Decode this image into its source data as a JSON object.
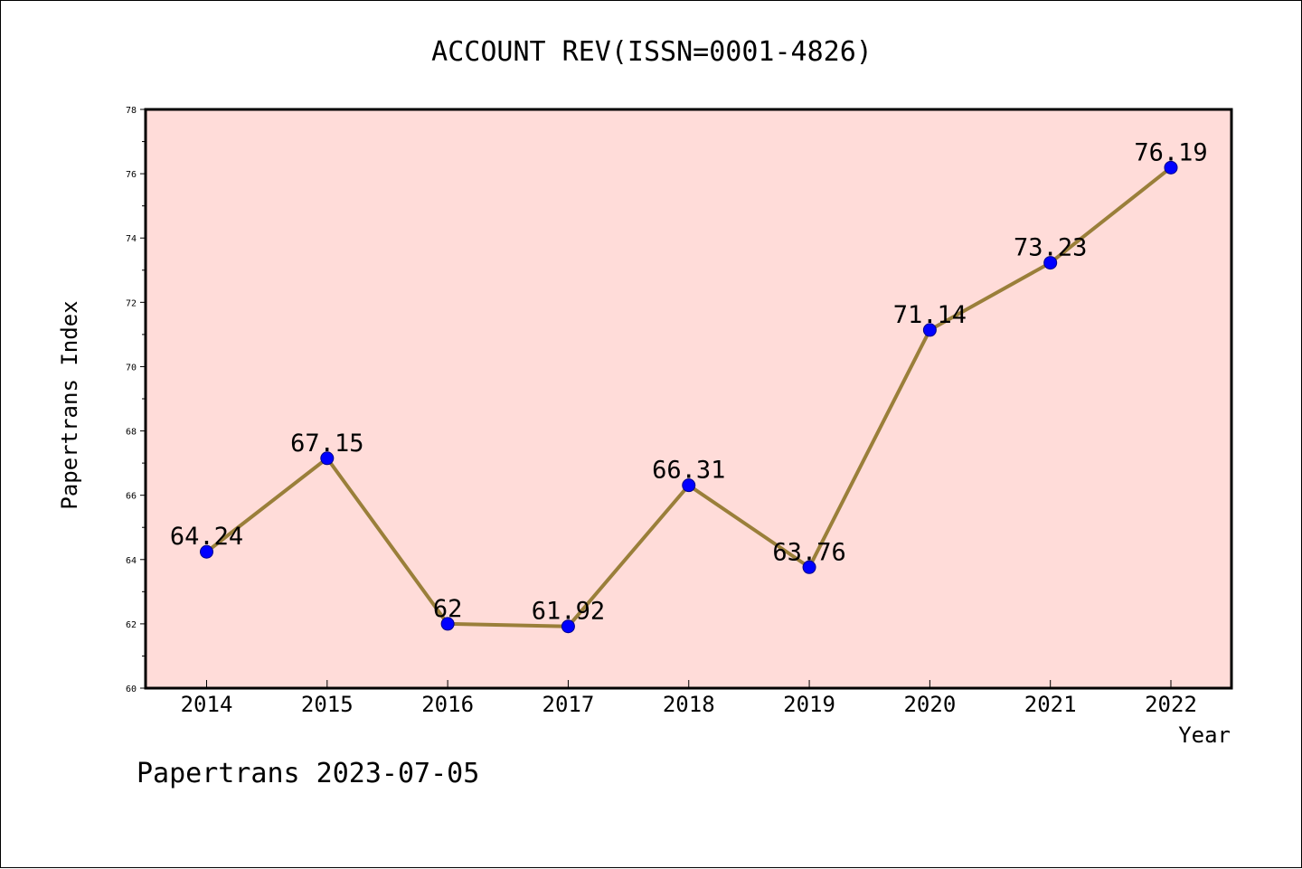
{
  "chart_data": {
    "type": "line",
    "title": "ACCOUNT REV(ISSN=0001-4826)",
    "xlabel": "Year",
    "ylabel": "Papertrans Index",
    "categories": [
      "2014",
      "2015",
      "2016",
      "2017",
      "2018",
      "2019",
      "2020",
      "2021",
      "2022"
    ],
    "series": [
      {
        "values": [
          64.24,
          67.15,
          62,
          61.92,
          66.31,
          63.76,
          71.14,
          73.23,
          76.19
        ],
        "labels": [
          "64.24",
          "67.15",
          "62",
          "61.92",
          "66.31",
          "63.76",
          "71.14",
          "73.23",
          "76.19"
        ]
      }
    ],
    "ylim": [
      60,
      78
    ],
    "yticks": [
      "60",
      "62",
      "64",
      "66",
      "68",
      "70",
      "72",
      "74",
      "76",
      "78"
    ],
    "grid": false,
    "legend": "none",
    "colors": {
      "plot_background": "#ffdcd9",
      "line": "#9a7f3a",
      "marker": "#0000ff",
      "marker_edge": "#00008b"
    }
  },
  "footer": {
    "text": "Papertrans 2023-07-05"
  }
}
